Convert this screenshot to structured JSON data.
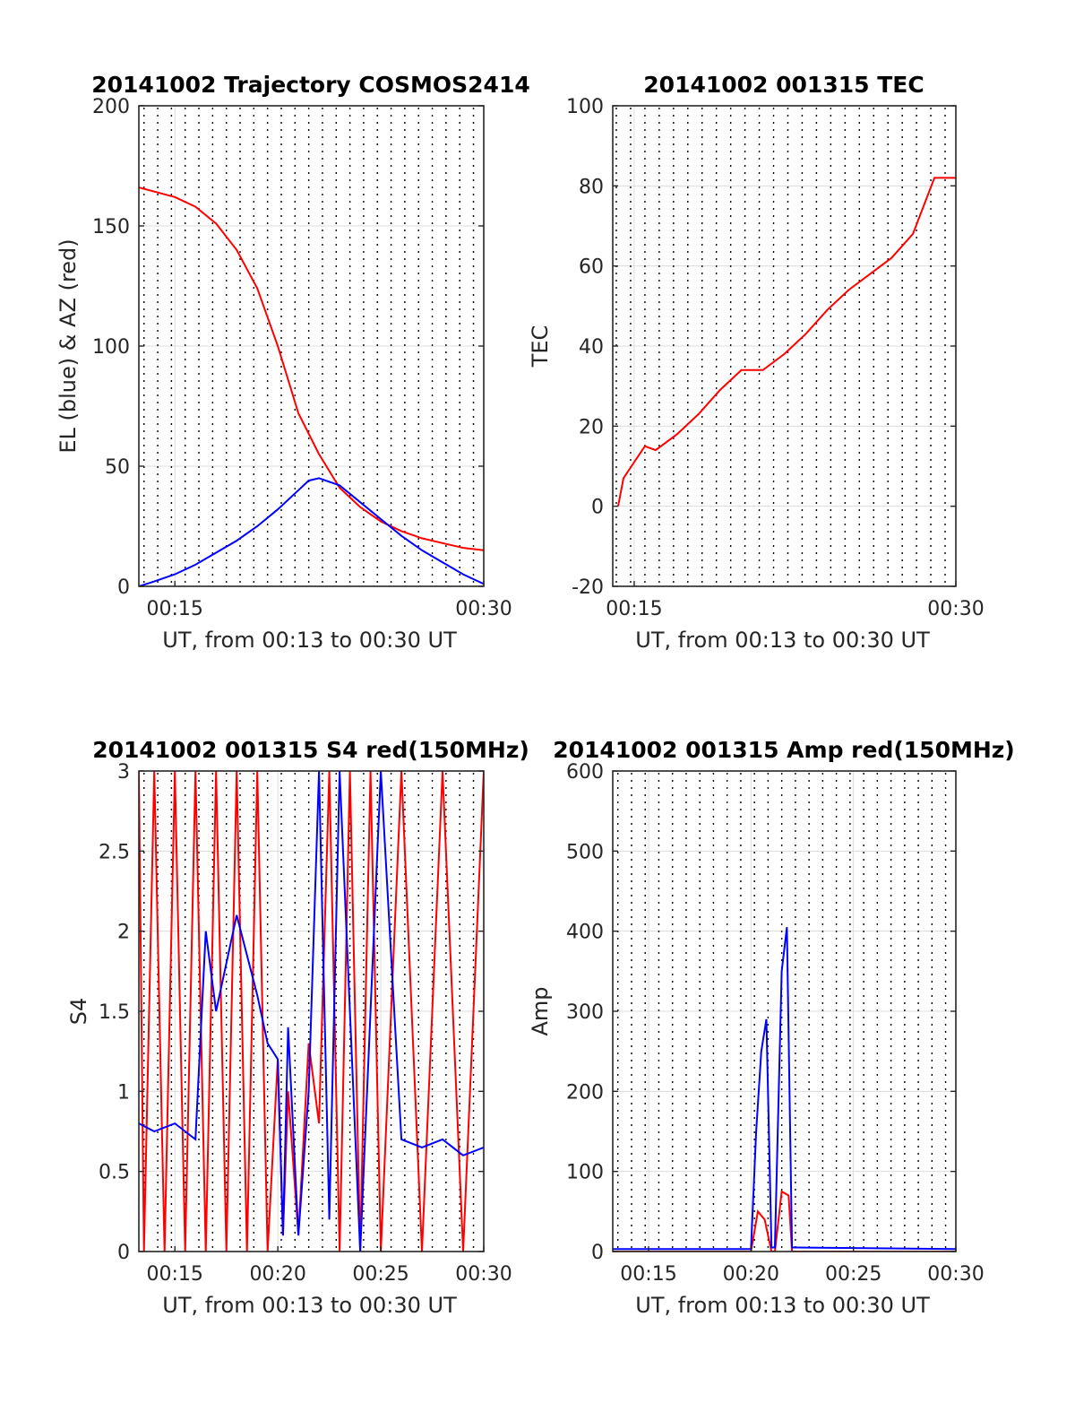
{
  "chart_data": [
    {
      "type": "line",
      "title": "20141002 Trajectory COSMOS2414",
      "xlabel": "UT, from 00:13 to 00:30 UT",
      "ylabel": "EL (blue) & AZ (red)",
      "xlim": [
        "00:13:15",
        "00:30:00"
      ],
      "ylim": [
        0,
        200
      ],
      "xticks": [
        "00:15",
        "00:30"
      ],
      "yticks": [
        0,
        50,
        100,
        150,
        200
      ],
      "grid": true,
      "series": [
        {
          "color": "#ff0000",
          "x": [
            "00:13:15",
            "00:15:00",
            "00:16:00",
            "00:17:00",
            "00:18:00",
            "00:19:00",
            "00:20:00",
            "00:21:00",
            "00:22:00",
            "00:23:00",
            "00:24:00",
            "00:25:00",
            "00:26:00",
            "00:27:00",
            "00:28:00",
            "00:29:00",
            "00:30:00"
          ],
          "y": [
            166,
            162,
            158,
            151,
            140,
            124,
            100,
            72,
            55,
            41,
            33,
            27,
            23,
            20,
            18,
            16,
            15
          ]
        },
        {
          "color": "#0000ff",
          "x": [
            "00:13:15",
            "00:14:00",
            "00:15:00",
            "00:16:00",
            "00:17:00",
            "00:18:00",
            "00:19:00",
            "00:20:00",
            "00:21:00",
            "00:21:30",
            "00:22:00",
            "00:23:00",
            "00:24:00",
            "00:25:00",
            "00:26:00",
            "00:27:00",
            "00:28:00",
            "00:29:00",
            "00:30:00"
          ],
          "y": [
            0,
            2,
            5,
            9,
            14,
            19,
            25,
            32,
            40,
            44,
            45,
            42,
            35,
            28,
            21,
            15,
            10,
            5,
            1
          ]
        }
      ]
    },
    {
      "type": "line",
      "title": "20141002 001315 TEC",
      "xlabel": "UT, from 00:13 to 00:30 UT",
      "ylabel": "TEC",
      "xlim": [
        "00:14:00",
        "00:30:00"
      ],
      "ylim": [
        -20,
        100
      ],
      "xticks": [
        "00:15",
        "00:30"
      ],
      "yticks": [
        -20,
        0,
        20,
        40,
        60,
        80,
        100
      ],
      "grid": true,
      "series": [
        {
          "color": "#ff0000",
          "x": [
            "00:14:15",
            "00:14:30",
            "00:15:00",
            "00:15:30",
            "00:16:00",
            "00:17:00",
            "00:18:00",
            "00:19:00",
            "00:20:00",
            "00:21:00",
            "00:22:00",
            "00:23:00",
            "00:24:00",
            "00:25:00",
            "00:26:00",
            "00:27:00",
            "00:28:00",
            "00:29:00",
            "00:30:00"
          ],
          "y": [
            0,
            7,
            11,
            15,
            14,
            18,
            23,
            29,
            34,
            34,
            38,
            43,
            49,
            54,
            58,
            62,
            68,
            82,
            82
          ]
        }
      ]
    },
    {
      "type": "line",
      "title": "20141002 001315 S4 red(150MHz)",
      "xlabel": "UT, from 00:13 to 00:30 UT",
      "ylabel": "S4",
      "xlim": [
        "00:13:15",
        "00:30:00"
      ],
      "ylim": [
        0,
        3
      ],
      "xticks": [
        "00:15",
        "00:20",
        "00:25",
        "00:30"
      ],
      "yticks": [
        0,
        0.5,
        1,
        1.5,
        2,
        2.5,
        3
      ],
      "grid": true,
      "series": [
        {
          "color": "#ff0000",
          "x": [
            "00:13:15",
            "00:13:30",
            "00:14:00",
            "00:14:30",
            "00:15:00",
            "00:15:30",
            "00:16:00",
            "00:16:30",
            "00:17:00",
            "00:17:30",
            "00:18:00",
            "00:18:30",
            "00:19:00",
            "00:19:30",
            "00:20:00",
            "00:20:15",
            "00:20:30",
            "00:21:00",
            "00:21:30",
            "00:22:00",
            "00:22:30",
            "00:23:00",
            "00:23:30",
            "00:24:00",
            "00:24:30",
            "00:25:00",
            "00:26:00",
            "00:27:00",
            "00:28:00",
            "00:29:00",
            "00:30:00"
          ],
          "y": [
            3,
            0,
            3,
            0,
            3,
            0,
            3,
            0,
            3,
            0,
            3,
            0,
            3,
            0,
            1.2,
            0.1,
            1.0,
            0.1,
            1.3,
            0.8,
            3,
            0,
            3,
            0,
            3,
            0,
            3,
            0,
            3,
            0,
            3
          ]
        },
        {
          "color": "#0000ff",
          "x": [
            "00:13:15",
            "00:14:00",
            "00:15:00",
            "00:16:00",
            "00:16:30",
            "00:17:00",
            "00:18:00",
            "00:19:00",
            "00:19:30",
            "00:20:00",
            "00:20:15",
            "00:20:30",
            "00:21:00",
            "00:21:30",
            "00:22:00",
            "00:22:30",
            "00:23:00",
            "00:24:00",
            "00:25:00",
            "00:26:00",
            "00:27:00",
            "00:28:00",
            "00:29:00",
            "00:30:00"
          ],
          "y": [
            0.8,
            0.75,
            0.8,
            0.7,
            2.0,
            1.5,
            2.1,
            1.6,
            1.3,
            1.2,
            0.1,
            1.4,
            0.1,
            1.0,
            3,
            0.2,
            3,
            0,
            3,
            0.7,
            0.65,
            0.7,
            0.6,
            0.65
          ]
        }
      ]
    },
    {
      "type": "line",
      "title": "20141002 001315 Amp red(150MHz)",
      "xlabel": "UT, from 00:13 to 00:30 UT",
      "ylabel": "Amp",
      "xlim": [
        "00:13:15",
        "00:30:00"
      ],
      "ylim": [
        0,
        600
      ],
      "xticks": [
        "00:15",
        "00:20",
        "00:25",
        "00:30"
      ],
      "yticks": [
        0,
        100,
        200,
        300,
        400,
        500,
        600
      ],
      "grid": true,
      "series": [
        {
          "color": "#ff0000",
          "x": [
            "00:13:15",
            "00:20:00",
            "00:20:20",
            "00:20:40",
            "00:21:00",
            "00:21:10",
            "00:21:30",
            "00:21:50",
            "00:22:00",
            "00:30:00"
          ],
          "y": [
            0,
            0,
            50,
            40,
            0,
            0,
            75,
            70,
            0,
            0
          ]
        },
        {
          "color": "#0000ff",
          "x": [
            "00:13:15",
            "00:20:00",
            "00:20:15",
            "00:20:30",
            "00:20:45",
            "00:21:00",
            "00:21:10",
            "00:21:30",
            "00:21:45",
            "00:22:00",
            "00:30:00"
          ],
          "y": [
            3,
            3,
            150,
            250,
            290,
            5,
            5,
            350,
            405,
            5,
            3
          ]
        }
      ]
    }
  ]
}
